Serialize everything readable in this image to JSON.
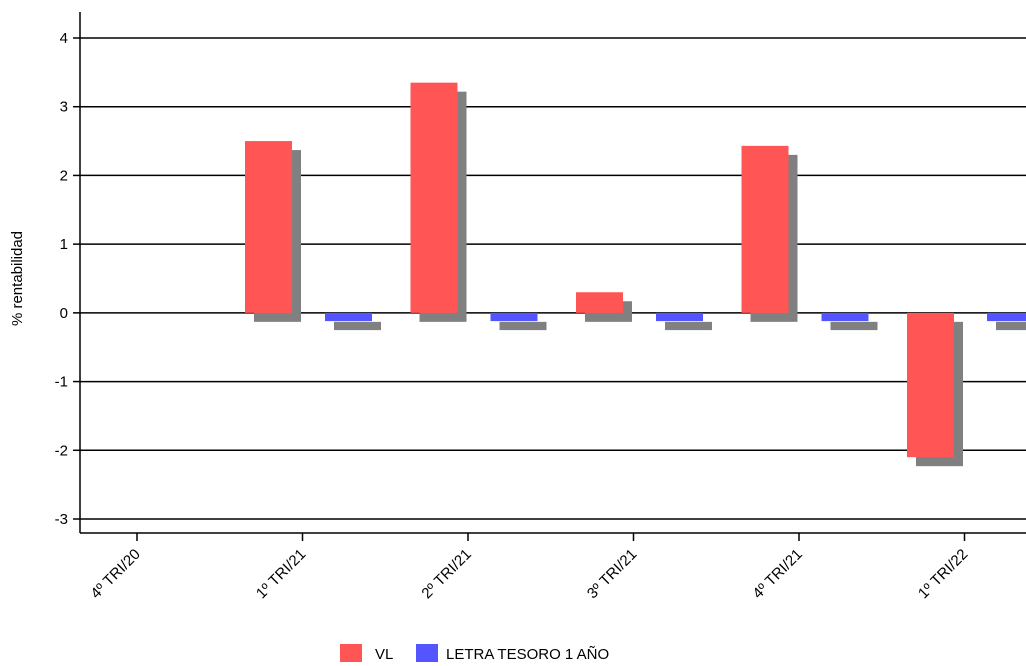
{
  "chart_data": {
    "type": "bar",
    "title": "",
    "xlabel": "",
    "ylabel": "% rentabilidad",
    "categories": [
      "4º TRI/20",
      "1º TRI/21",
      "2º TRI/21",
      "3º TRI/21",
      "4º TRI/21",
      "1º TRI/22"
    ],
    "series": [
      {
        "name": "VL",
        "color": "#ff5555",
        "values": [
          0,
          2.5,
          3.35,
          0.3,
          2.43,
          -2.1
        ]
      },
      {
        "name": "LETRA TESORO 1 AÑO",
        "color": "#5555ff",
        "values": [
          0,
          -0.12,
          -0.12,
          -0.12,
          -0.12,
          -0.12
        ]
      }
    ],
    "ylim": [
      -3.2,
      4.4
    ],
    "yticks": [
      -3,
      -2,
      -1,
      0,
      1,
      2,
      3,
      4
    ],
    "grid": true,
    "shadow_color": "#808080",
    "legend_position": "bottom-center"
  }
}
